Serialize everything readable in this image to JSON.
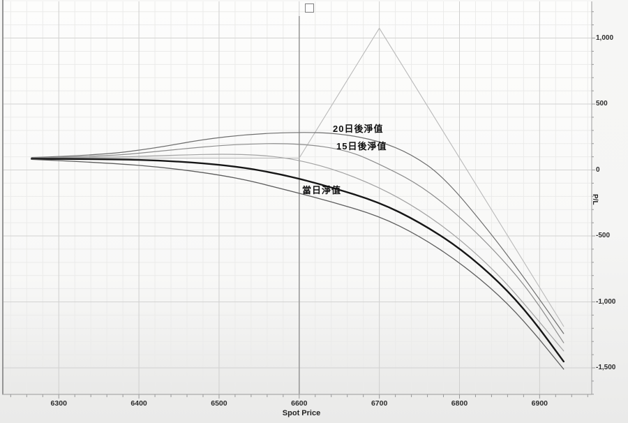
{
  "window": {
    "background": "#f5f5f4"
  },
  "marker": {
    "type": "empty-checkbox"
  },
  "chart_data": {
    "type": "line",
    "title": "",
    "xlabel": "Spot Price",
    "ylabel": "P/L",
    "grid": true,
    "legend_position": "none",
    "x_axis": {
      "min": 6231,
      "max": 6965,
      "major_tick_step": 100,
      "minor_grid_step": 20
    },
    "y_axis": {
      "min": -1701,
      "max": 1278,
      "major_tick_step": 500,
      "minor_grid_step": 100
    },
    "spot_line_x": 6600,
    "x_ticks": [
      {
        "value": 6300,
        "label": "6300"
      },
      {
        "value": 6400,
        "label": "6400"
      },
      {
        "value": 6500,
        "label": "6500"
      },
      {
        "value": 6600,
        "label": "6600"
      },
      {
        "value": 6700,
        "label": "6700"
      },
      {
        "value": 6800,
        "label": "6800"
      },
      {
        "value": 6900,
        "label": "6900"
      }
    ],
    "y_ticks": [
      {
        "value": 1000,
        "label": "1,000"
      },
      {
        "value": 500,
        "label": "500"
      },
      {
        "value": 0,
        "label": "0"
      },
      {
        "value": -500,
        "label": "-500"
      },
      {
        "value": -1000,
        "label": "-1,000"
      },
      {
        "value": -1500,
        "label": "-1,500"
      }
    ],
    "annotations": [
      {
        "text": "20日後淨值",
        "series": "day20_curve"
      },
      {
        "text": "15日後淨值",
        "series": "day15_curve"
      },
      {
        "text": "當日淨值",
        "series": "today_curve"
      }
    ],
    "series": [
      {
        "name": "expiry_payoff",
        "label": "",
        "color": "#b9b9b9",
        "width": 1.1,
        "smooth": false,
        "points": [
          [
            6266,
            90
          ],
          [
            6600,
            90
          ],
          [
            6700,
            1075
          ],
          [
            6930,
            -1185
          ]
        ]
      },
      {
        "name": "day20_curve",
        "label": "20日後淨值",
        "color": "#6e6e6e",
        "width": 1.2,
        "smooth": true,
        "points": [
          [
            6266,
            95
          ],
          [
            6350,
            112
          ],
          [
            6420,
            165
          ],
          [
            6480,
            232
          ],
          [
            6540,
            272
          ],
          [
            6600,
            287
          ],
          [
            6650,
            278
          ],
          [
            6700,
            220
          ],
          [
            6740,
            120
          ],
          [
            6780,
            -50
          ],
          [
            6836,
            -455
          ],
          [
            6880,
            -810
          ],
          [
            6930,
            -1240
          ]
        ]
      },
      {
        "name": "day15_curve",
        "label": "15日後淨值",
        "color": "#8c8c8c",
        "width": 1.2,
        "smooth": true,
        "points": [
          [
            6266,
            92
          ],
          [
            6360,
            102
          ],
          [
            6440,
            152
          ],
          [
            6520,
            196
          ],
          [
            6600,
            203
          ],
          [
            6660,
            150
          ],
          [
            6700,
            45
          ],
          [
            6750,
            -110
          ],
          [
            6800,
            -350
          ],
          [
            6850,
            -650
          ],
          [
            6890,
            -940
          ],
          [
            6930,
            -1310
          ]
        ]
      },
      {
        "name": "mid_curve_unlabeled",
        "label": "",
        "color": "#a2a2a2",
        "width": 1.2,
        "smooth": true,
        "points": [
          [
            6266,
            90
          ],
          [
            6360,
            95
          ],
          [
            6440,
            112
          ],
          [
            6520,
            123
          ],
          [
            6580,
            100
          ],
          [
            6640,
            15
          ],
          [
            6700,
            -130
          ],
          [
            6750,
            -300
          ],
          [
            6800,
            -520
          ],
          [
            6850,
            -800
          ],
          [
            6890,
            -1080
          ],
          [
            6930,
            -1372
          ]
        ]
      },
      {
        "name": "today_curve",
        "label": "當日淨值",
        "color": "#161616",
        "width": 2.4,
        "smooth": true,
        "points": [
          [
            6266,
            85
          ],
          [
            6360,
            83
          ],
          [
            6440,
            70
          ],
          [
            6520,
            30
          ],
          [
            6580,
            -35
          ],
          [
            6640,
            -130
          ],
          [
            6700,
            -245
          ],
          [
            6750,
            -395
          ],
          [
            6800,
            -590
          ],
          [
            6850,
            -850
          ],
          [
            6890,
            -1120
          ],
          [
            6930,
            -1452
          ]
        ]
      },
      {
        "name": "lower_curve_unlabeled",
        "label": "",
        "color": "#5d5d5d",
        "width": 1.3,
        "smooth": true,
        "points": [
          [
            6266,
            80
          ],
          [
            6360,
            55
          ],
          [
            6440,
            15
          ],
          [
            6520,
            -55
          ],
          [
            6580,
            -145
          ],
          [
            6640,
            -240
          ],
          [
            6700,
            -350
          ],
          [
            6750,
            -500
          ],
          [
            6800,
            -700
          ],
          [
            6850,
            -950
          ],
          [
            6890,
            -1210
          ],
          [
            6930,
            -1510
          ]
        ]
      }
    ]
  }
}
